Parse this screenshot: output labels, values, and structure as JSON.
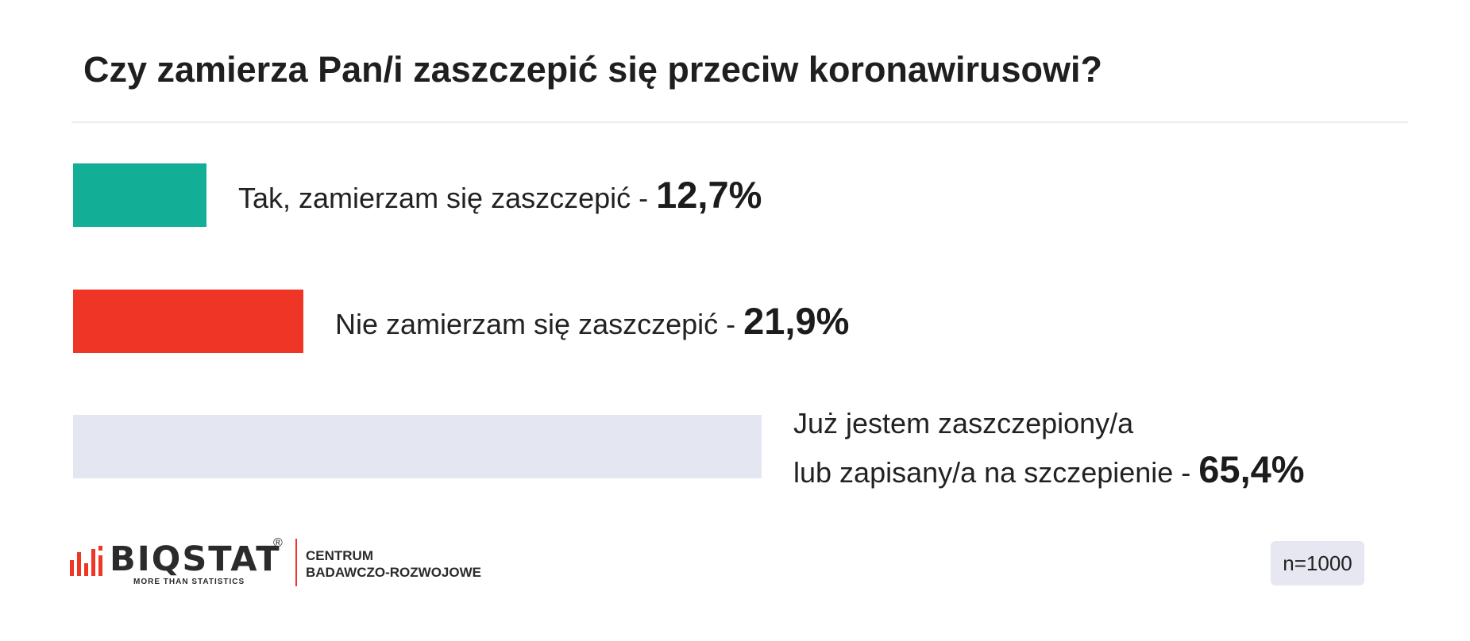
{
  "chart_data": {
    "type": "bar",
    "orientation": "horizontal",
    "title": "Czy zamierza Pan/i zaszczepić się przeciw koronawirusowi?",
    "categories": [
      "Tak, zamierzam się zaszczepić",
      "Nie zamierzam się zaszczepić",
      "Już jestem zaszczepiony/a lub zapisany/a na szczepienie"
    ],
    "values": [
      12.7,
      21.9,
      65.4
    ],
    "value_labels": [
      "12,7%",
      "21,9%",
      "65,4%"
    ],
    "colors": [
      "#12af96",
      "#ef3526",
      "#e4e6f1"
    ],
    "xlim": [
      0,
      100
    ],
    "grid": false,
    "legend": "none"
  },
  "rows": [
    {
      "lines": [
        "Tak, zamierzam się zaszczepić - "
      ],
      "pct": "12,7%"
    },
    {
      "lines": [
        "Nie zamierzam się zaszczepić - "
      ],
      "pct": "21,9%"
    },
    {
      "lines": [
        "Już jestem zaszczepiony/a",
        "lub zapisany/a na szczepienie - "
      ],
      "pct": "65,4%"
    }
  ],
  "logo": {
    "brand": "BIQSTAT",
    "registered": "®",
    "tagline": "MORE THAN STATISTICS",
    "center_line1": "CENTRUM",
    "center_line2": "BADAWCZO-ROZWOJOWE"
  },
  "sample_size": "n=1000",
  "colors": {
    "accent_red": "#ef3525",
    "text": "#222222",
    "badge_bg": "#e6e7f1"
  }
}
